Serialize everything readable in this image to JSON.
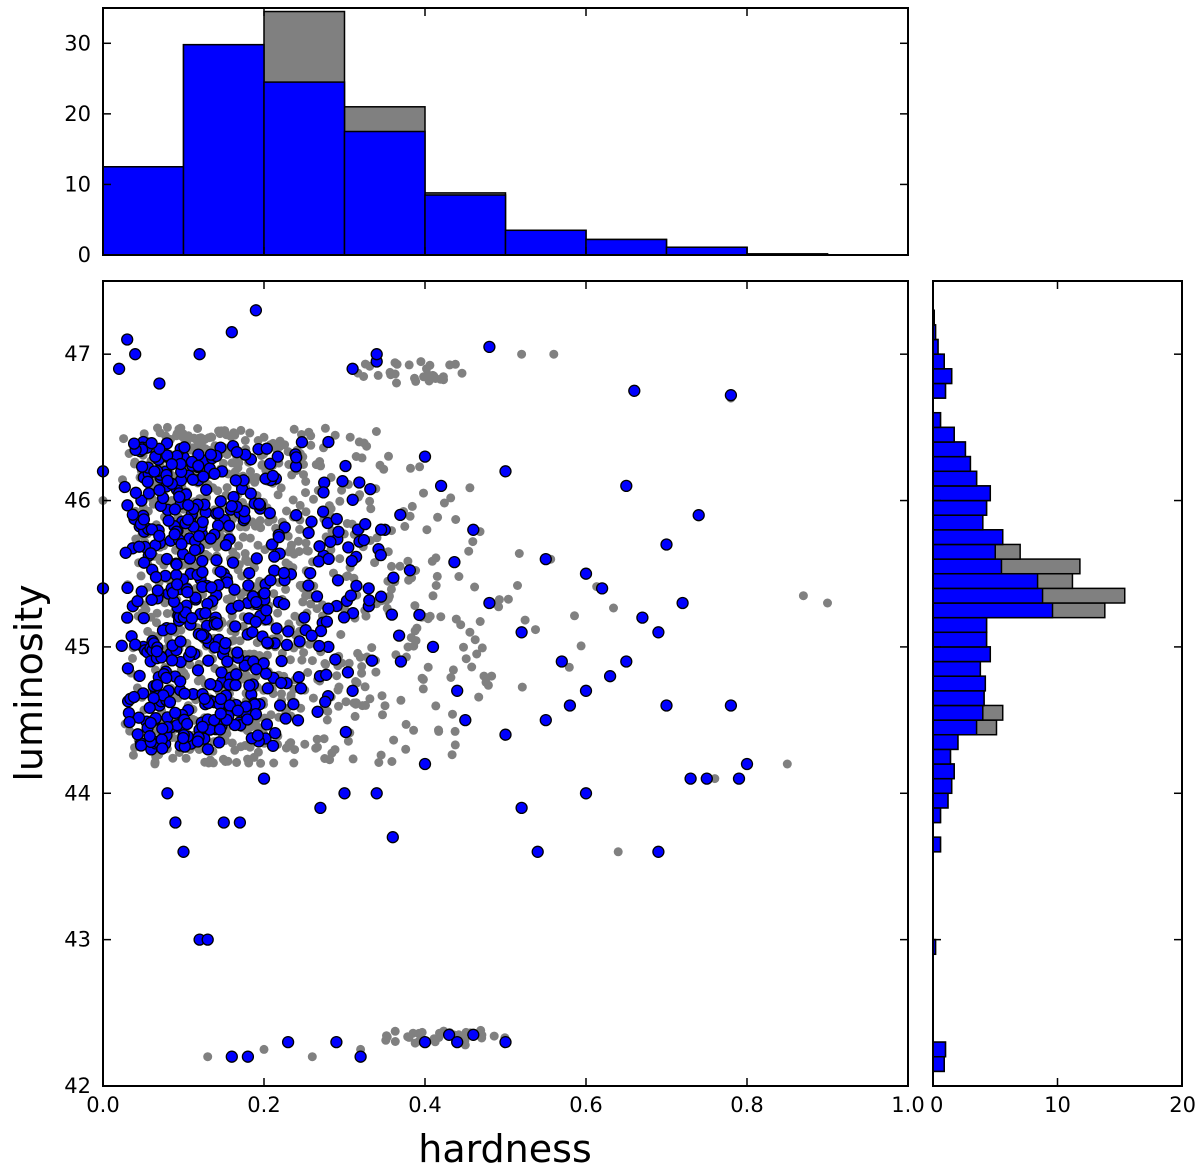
{
  "chart_data": {
    "type": "scatter",
    "xlabel": "hardness",
    "ylabel": "luminosity",
    "colors": {
      "all": "#808080",
      "selected": "#0000ff",
      "edge": "#000000"
    },
    "main": {
      "xlim": [
        0.0,
        1.0
      ],
      "ylim": [
        42,
        47.5
      ],
      "xticks": [
        "0.0",
        "0.2",
        "0.4",
        "0.6",
        "0.8",
        "1.0"
      ],
      "yticks": [
        "42",
        "43",
        "44",
        "45",
        "46",
        "47"
      ],
      "grid": false,
      "clusters_gray": [
        {
          "name": "top-streak",
          "x": [
            0.3,
            0.45
          ],
          "y": [
            46.8,
            46.95
          ],
          "n": 30
        },
        {
          "name": "bottom-streak",
          "x": [
            0.35,
            0.5
          ],
          "y": [
            42.28,
            42.38
          ],
          "n": 30
        },
        {
          "name": "main-cloud",
          "x": [
            0.0,
            0.8
          ],
          "y": [
            44.2,
            46.5
          ],
          "n": 900
        }
      ],
      "points_selected_sample": [
        [
          0.0,
          46.2
        ],
        [
          0.0,
          45.4
        ],
        [
          0.02,
          46.9
        ],
        [
          0.03,
          47.1
        ],
        [
          0.04,
          47.0
        ],
        [
          0.07,
          46.8
        ],
        [
          0.12,
          47.0
        ],
        [
          0.16,
          47.15
        ],
        [
          0.19,
          47.3
        ],
        [
          0.08,
          46.3
        ],
        [
          0.05,
          46.4
        ],
        [
          0.11,
          45.9
        ],
        [
          0.15,
          45.5
        ],
        [
          0.18,
          45.3
        ],
        [
          0.21,
          45.7
        ],
        [
          0.24,
          45.9
        ],
        [
          0.28,
          46.4
        ],
        [
          0.33,
          45.4
        ],
        [
          0.35,
          45.8
        ],
        [
          0.4,
          46.3
        ],
        [
          0.42,
          46.1
        ],
        [
          0.46,
          45.8
        ],
        [
          0.5,
          46.2
        ],
        [
          0.55,
          45.6
        ],
        [
          0.6,
          45.5
        ],
        [
          0.62,
          45.4
        ],
        [
          0.65,
          46.1
        ],
        [
          0.7,
          45.7
        ],
        [
          0.74,
          45.9
        ],
        [
          0.72,
          45.3
        ],
        [
          0.67,
          45.2
        ],
        [
          0.69,
          45.1
        ],
        [
          0.65,
          44.9
        ],
        [
          0.6,
          44.7
        ],
        [
          0.55,
          44.5
        ],
        [
          0.5,
          44.4
        ],
        [
          0.45,
          44.5
        ],
        [
          0.4,
          44.2
        ],
        [
          0.36,
          43.7
        ],
        [
          0.34,
          44.0
        ],
        [
          0.3,
          44.0
        ],
        [
          0.27,
          43.9
        ],
        [
          0.2,
          44.1
        ],
        [
          0.17,
          43.8
        ],
        [
          0.15,
          43.8
        ],
        [
          0.09,
          43.8
        ],
        [
          0.1,
          43.6
        ],
        [
          0.12,
          43.0
        ],
        [
          0.13,
          43.0
        ],
        [
          0.08,
          44.0
        ],
        [
          0.06,
          44.3
        ],
        [
          0.07,
          44.6
        ],
        [
          0.05,
          45.0
        ],
        [
          0.03,
          45.2
        ],
        [
          0.25,
          45.2
        ],
        [
          0.28,
          45.0
        ],
        [
          0.31,
          44.7
        ],
        [
          0.22,
          44.6
        ],
        [
          0.18,
          44.9
        ],
        [
          0.14,
          45.2
        ],
        [
          0.37,
          44.9
        ],
        [
          0.41,
          45.0
        ],
        [
          0.44,
          44.7
        ],
        [
          0.48,
          45.3
        ],
        [
          0.52,
          45.1
        ],
        [
          0.57,
          44.9
        ],
        [
          0.58,
          44.6
        ],
        [
          0.63,
          44.8
        ],
        [
          0.7,
          44.6
        ],
        [
          0.73,
          44.1
        ],
        [
          0.75,
          44.1
        ],
        [
          0.78,
          44.6
        ],
        [
          0.8,
          44.2
        ],
        [
          0.79,
          44.1
        ],
        [
          0.69,
          43.6
        ],
        [
          0.54,
          43.6
        ],
        [
          0.52,
          43.9
        ],
        [
          0.6,
          44.0
        ],
        [
          0.66,
          46.75
        ],
        [
          0.78,
          46.72
        ],
        [
          0.48,
          47.05
        ],
        [
          0.31,
          46.9
        ],
        [
          0.34,
          46.95
        ],
        [
          0.34,
          47.0
        ],
        [
          0.18,
          42.2
        ],
        [
          0.16,
          42.2
        ],
        [
          0.23,
          42.3
        ],
        [
          0.29,
          42.3
        ],
        [
          0.32,
          42.2
        ],
        [
          0.4,
          42.3
        ],
        [
          0.43,
          42.35
        ],
        [
          0.46,
          42.35
        ],
        [
          0.5,
          42.3
        ],
        [
          0.44,
          42.3
        ]
      ]
    },
    "top_hist": {
      "xlim": [
        0.0,
        1.0
      ],
      "ylim": [
        0,
        35
      ],
      "yticks": [
        "0",
        "10",
        "20",
        "30"
      ],
      "bin_edges": [
        0.0,
        0.1,
        0.2,
        0.3,
        0.4,
        0.5,
        0.6,
        0.7,
        0.8,
        0.9,
        1.0
      ],
      "series": [
        {
          "values": [
            12.5,
            29.8,
            34.5,
            21.0,
            8.8,
            3.5,
            2.2,
            1.1,
            0.15,
            0.0
          ]
        },
        {
          "values": [
            12.5,
            29.8,
            24.5,
            17.5,
            8.5,
            3.5,
            2.2,
            1.1,
            0.15,
            0.0
          ]
        }
      ]
    },
    "right_hist": {
      "xlim": [
        0,
        20
      ],
      "xticks": [
        "0",
        "10",
        "20"
      ],
      "ylim": [
        42,
        47.5
      ],
      "bin_width": 0.1,
      "bins": [
        {
          "y": 42.1,
          "a": 0.9,
          "s": 0.9
        },
        {
          "y": 42.2,
          "a": 1.0,
          "s": 1.0
        },
        {
          "y": 42.9,
          "a": 0.2,
          "s": 0.2
        },
        {
          "y": 43.6,
          "a": 0.6,
          "s": 0.6
        },
        {
          "y": 43.8,
          "a": 0.6,
          "s": 0.6
        },
        {
          "y": 43.9,
          "a": 1.2,
          "s": 1.2
        },
        {
          "y": 44.0,
          "a": 1.5,
          "s": 1.5
        },
        {
          "y": 44.1,
          "a": 1.7,
          "s": 1.7
        },
        {
          "y": 44.2,
          "a": 1.4,
          "s": 1.4
        },
        {
          "y": 44.3,
          "a": 2.0,
          "s": 2.0
        },
        {
          "y": 44.4,
          "a": 5.1,
          "s": 3.5
        },
        {
          "y": 44.5,
          "a": 5.6,
          "s": 4.0
        },
        {
          "y": 44.6,
          "a": 4.1,
          "s": 4.1
        },
        {
          "y": 44.7,
          "a": 4.2,
          "s": 4.2
        },
        {
          "y": 44.8,
          "a": 3.8,
          "s": 3.8
        },
        {
          "y": 44.9,
          "a": 4.6,
          "s": 4.6
        },
        {
          "y": 45.0,
          "a": 4.3,
          "s": 4.3
        },
        {
          "y": 45.1,
          "a": 4.3,
          "s": 4.3
        },
        {
          "y": 45.2,
          "a": 13.8,
          "s": 9.6
        },
        {
          "y": 45.3,
          "a": 15.4,
          "s": 8.8
        },
        {
          "y": 45.4,
          "a": 11.2,
          "s": 8.4
        },
        {
          "y": 45.5,
          "a": 11.8,
          "s": 5.5
        },
        {
          "y": 45.6,
          "a": 7.0,
          "s": 5.0
        },
        {
          "y": 45.7,
          "a": 5.6,
          "s": 5.6
        },
        {
          "y": 45.8,
          "a": 4.0,
          "s": 4.0
        },
        {
          "y": 45.9,
          "a": 4.3,
          "s": 4.3
        },
        {
          "y": 46.0,
          "a": 4.6,
          "s": 4.6
        },
        {
          "y": 46.1,
          "a": 3.5,
          "s": 3.5
        },
        {
          "y": 46.2,
          "a": 3.0,
          "s": 3.0
        },
        {
          "y": 46.3,
          "a": 2.6,
          "s": 2.6
        },
        {
          "y": 46.4,
          "a": 1.7,
          "s": 1.7
        },
        {
          "y": 46.5,
          "a": 0.6,
          "s": 0.6
        },
        {
          "y": 46.7,
          "a": 1.0,
          "s": 1.0
        },
        {
          "y": 46.8,
          "a": 1.5,
          "s": 1.5
        },
        {
          "y": 46.9,
          "a": 0.9,
          "s": 0.9
        },
        {
          "y": 47.0,
          "a": 0.4,
          "s": 0.4
        },
        {
          "y": 47.1,
          "a": 0.2,
          "s": 0.2
        },
        {
          "y": 47.2,
          "a": 0.1,
          "s": 0.1
        }
      ]
    }
  }
}
